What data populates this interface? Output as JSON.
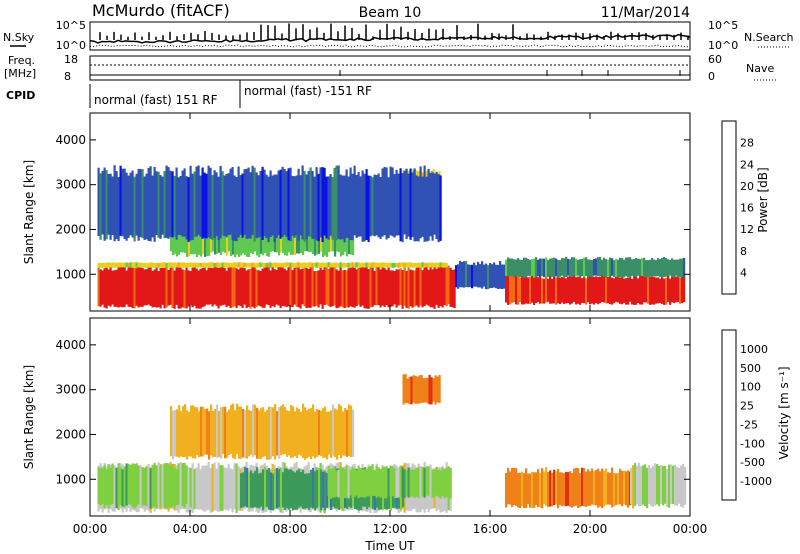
{
  "header": {
    "station": "McMurdo (fitACF)",
    "beam": "Beam 10",
    "date": "11/Mar/2014"
  },
  "strip": {
    "nsky_label": "N.Sky",
    "nsky_ticks": [
      "10^5",
      "10^0"
    ],
    "nsearch_label": "N.Search",
    "nsearch_ticks": [
      "10^5",
      "10^0"
    ],
    "freq_label": "Freq.",
    "freq_unit": "[MHz]",
    "freq_ticks": [
      "18",
      "8"
    ],
    "nave_label": "Nave",
    "nave_ticks": [
      "60",
      "0"
    ],
    "cpid_label": "CPID",
    "cpid_segments": [
      "normal (fast) 151 RF",
      "normal (fast) -151 RF"
    ]
  },
  "chart_data": [
    {
      "type": "heatmap",
      "name": "power",
      "xlabel": "Time UT",
      "ylabel": "Slant Range [km]",
      "xticks": [
        "00:00",
        "04:00",
        "08:00",
        "12:00",
        "16:00",
        "20:00",
        "00:00"
      ],
      "xlim": [
        0,
        24
      ],
      "yticks": [
        1000,
        2000,
        3000,
        4000
      ],
      "ylim": [
        180,
        4600
      ],
      "colorbar": {
        "label": "Power [dB]",
        "ticks": [
          4,
          8,
          12,
          16,
          20,
          24,
          28
        ],
        "range": [
          0,
          32
        ],
        "colors": [
          "#0a12e6",
          "#2f52b4",
          "#3a8e68",
          "#5ec850",
          "#e8cf1a",
          "#f3a52a",
          "#f46a12",
          "#e21818"
        ]
      },
      "regions": [
        {
          "t0": 0.3,
          "t1": 14.6,
          "r0": 280,
          "r1": 1150,
          "level": 7
        },
        {
          "t0": 0.3,
          "t1": 14.3,
          "r0": 1150,
          "r1": 1260,
          "level": 4
        },
        {
          "t0": 14.6,
          "t1": 16.6,
          "r0": 700,
          "r1": 1250,
          "level": 1
        },
        {
          "t0": 16.6,
          "t1": 23.8,
          "r0": 350,
          "r1": 950,
          "level": 7
        },
        {
          "t0": 16.6,
          "t1": 23.8,
          "r0": 950,
          "r1": 1350,
          "level": 2
        },
        {
          "t0": 3.2,
          "t1": 10.5,
          "r0": 1450,
          "r1": 2600,
          "level": 3
        },
        {
          "t0": 12.5,
          "t1": 14.0,
          "r0": 2700,
          "r1": 3300,
          "level": 4
        },
        {
          "t0": 0.3,
          "t1": 14.0,
          "r0": 1800,
          "r1": 3300,
          "level": 1
        }
      ]
    },
    {
      "type": "heatmap",
      "name": "velocity",
      "xlabel": "Time UT",
      "ylabel": "Slant Range [km]",
      "xticks": [
        "00:00",
        "04:00",
        "08:00",
        "12:00",
        "16:00",
        "20:00",
        "00:00"
      ],
      "xlim": [
        0,
        24
      ],
      "yticks": [
        1000,
        2000,
        3000,
        4000
      ],
      "ylim": [
        180,
        4600
      ],
      "colorbar": {
        "label": "Velocity [m s⁻¹]",
        "ticks": [
          "1000",
          "500",
          "100",
          "25",
          "-25",
          "-100",
          "-500",
          "-1000"
        ],
        "colors": [
          "#1c34c8",
          "#3a78a8",
          "#3c9a5a",
          "#7ed040",
          "#c8c8c8",
          "#f0b020",
          "#f08018",
          "#e23010",
          "#d80000"
        ]
      },
      "regions": [
        {
          "t0": 0.3,
          "t1": 14.4,
          "r0": 300,
          "r1": 1300,
          "level": 4
        },
        {
          "t0": 0.3,
          "t1": 4.0,
          "r0": 400,
          "r1": 1300,
          "level": 3
        },
        {
          "t0": 6.0,
          "t1": 12.5,
          "r0": 350,
          "r1": 1200,
          "level": 2
        },
        {
          "t0": 9.5,
          "t1": 14.4,
          "r0": 600,
          "r1": 1250,
          "level": 3
        },
        {
          "t0": 16.6,
          "t1": 21.6,
          "r0": 400,
          "r1": 1200,
          "level": 6
        },
        {
          "t0": 21.6,
          "t1": 23.8,
          "r0": 400,
          "r1": 1300,
          "level": 4
        },
        {
          "t0": 3.2,
          "t1": 10.5,
          "r0": 1500,
          "r1": 2600,
          "level": 5
        },
        {
          "t0": 12.5,
          "t1": 14.0,
          "r0": 2700,
          "r1": 3300,
          "level": 6
        }
      ]
    }
  ]
}
